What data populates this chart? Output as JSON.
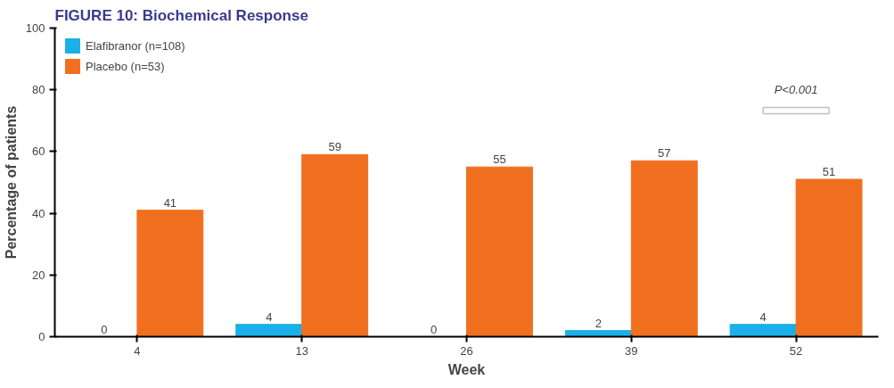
{
  "chart_data": {
    "type": "bar",
    "title": "FIGURE 10: Biochemical Response",
    "xlabel": "Week",
    "ylabel": "Percentage of patients",
    "categories": [
      "4",
      "13",
      "26",
      "39",
      "52"
    ],
    "series": [
      {
        "name": "Elafibranor (n=108)",
        "color": "#1ab0e8",
        "values": [
          0,
          4,
          0,
          2,
          4
        ]
      },
      {
        "name": "Placebo (n=53)",
        "color": "#f07020",
        "values": [
          41,
          59,
          55,
          57,
          51
        ]
      }
    ],
    "ylim": [
      0,
      100
    ],
    "yticks": [
      0,
      20,
      40,
      60,
      80,
      100
    ],
    "data_labels": true,
    "legend": "top left",
    "grid": false,
    "annotations": [
      "P<0.001"
    ]
  }
}
